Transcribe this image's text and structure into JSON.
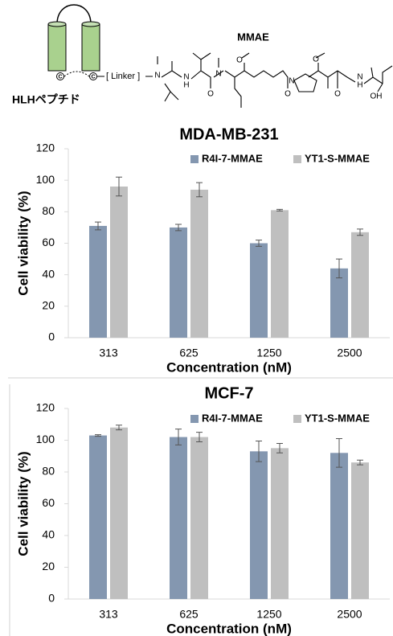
{
  "diagram": {
    "peptide_label": "HLHペプチド",
    "linker_label": "[ Linker ]",
    "drug_label": "MMAE",
    "cys_labels": [
      "C",
      "C"
    ],
    "atoms": [
      "N",
      "N",
      "H",
      "O",
      "N",
      "O",
      "O",
      "N",
      "O",
      "O",
      "N",
      "H",
      "OH"
    ]
  },
  "chart_data": [
    {
      "type": "bar",
      "title": "MDA-MB-231",
      "x_label": "Concentration (nM)",
      "y_label": "Cell viability (%)",
      "categories": [
        "313",
        "625",
        "1250",
        "2500"
      ],
      "series": [
        {
          "name": "R4I-7-MMAE",
          "color": "#8497b0",
          "values": [
            71,
            70,
            60,
            44
          ],
          "errors": [
            2.5,
            2,
            2,
            6
          ]
        },
        {
          "name": "YT1-S-MMAE",
          "color": "#bfbfbf",
          "values": [
            96,
            94,
            81,
            67
          ],
          "errors": [
            6,
            4.5,
            0.5,
            2
          ]
        }
      ],
      "ylim": [
        0,
        120
      ],
      "yticks": [
        0,
        20,
        40,
        60,
        80,
        100,
        120
      ],
      "grid": false,
      "legend": "top-right"
    },
    {
      "type": "bar",
      "title": "MCF-7",
      "x_label": "Concentration (nM)",
      "y_label": "Cell viability (%)",
      "categories": [
        "313",
        "625",
        "1250",
        "2500"
      ],
      "series": [
        {
          "name": "R4I-7-MMAE",
          "color": "#8497b0",
          "values": [
            103,
            102,
            93,
            92
          ],
          "errors": [
            0.5,
            5,
            6.5,
            9
          ]
        },
        {
          "name": "YT1-S-MMAE",
          "color": "#bfbfbf",
          "values": [
            108,
            102,
            95,
            86
          ],
          "errors": [
            1.5,
            3,
            3,
            1.5
          ]
        }
      ],
      "ylim": [
        0,
        120
      ],
      "yticks": [
        0,
        20,
        40,
        60,
        80,
        100,
        120
      ],
      "grid": false,
      "legend": "top-right"
    }
  ]
}
